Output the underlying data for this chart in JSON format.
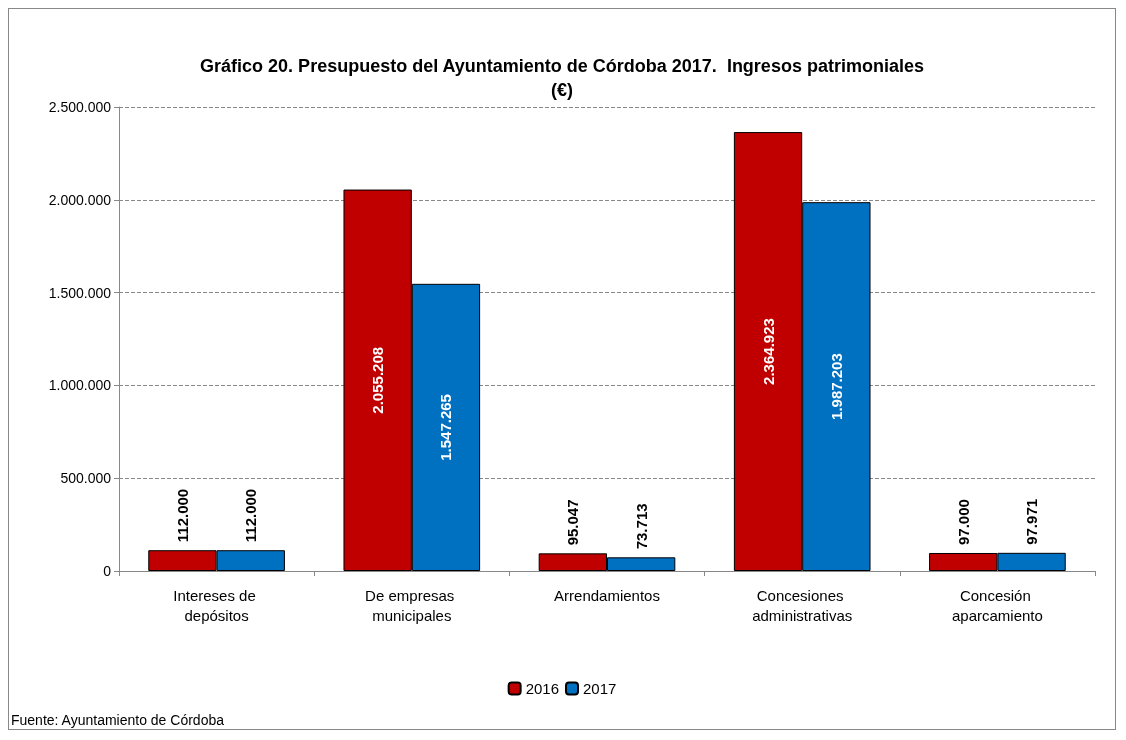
{
  "chart_data": {
    "type": "bar",
    "title": "Gráfico 20. Presupuesto del Ayuntamiento de Córdoba 2017.  Ingresos patrimoniales\n(€)",
    "categories": [
      "Intereses de depósitos",
      "De empresas municipales",
      "Arrendamientos",
      "Concesiones administrativas",
      "Concesión aparcamiento"
    ],
    "series": [
      {
        "name": "2016",
        "color": "#c00000",
        "values": [
          112000,
          2055208,
          95047,
          2364923,
          97000
        ],
        "value_labels": [
          "112.000",
          "2.055.208",
          "95.047",
          "2.364.923",
          "97.000"
        ]
      },
      {
        "name": "2017",
        "color": "#0070c0",
        "values": [
          112000,
          1547265,
          73713,
          1987203,
          97971
        ],
        "value_labels": [
          "112.000",
          "1.547.265",
          "73.713",
          "1.987.203",
          "97.971"
        ]
      }
    ],
    "ylim": [
      0,
      2500000
    ],
    "yticks": [
      {
        "value": 0,
        "label": "0"
      },
      {
        "value": 500000,
        "label": "500.000"
      },
      {
        "value": 1000000,
        "label": "1.000.000"
      },
      {
        "value": 1500000,
        "label": "1.500.000"
      },
      {
        "value": 2000000,
        "label": "2.000.000"
      },
      {
        "value": 2500000,
        "label": "2.500.000"
      }
    ],
    "grid": "y",
    "legend": "bottom",
    "annotations": [
      "Fuente: Ayuntamiento de Córdoba"
    ]
  }
}
